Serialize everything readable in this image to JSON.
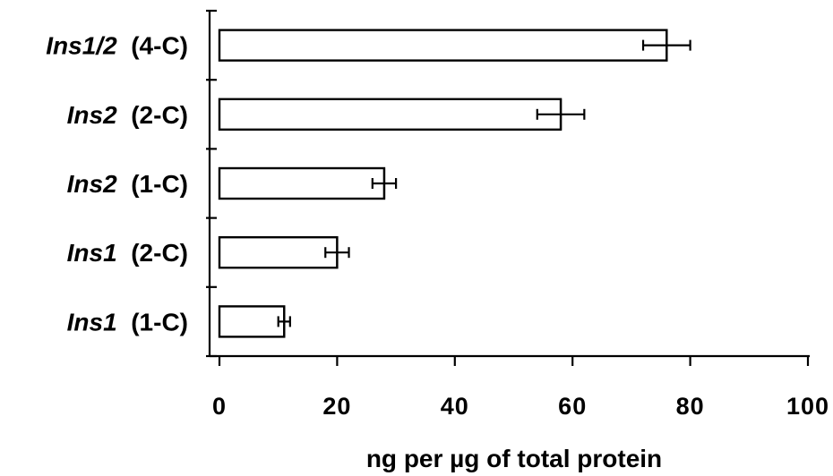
{
  "chart_data": {
    "type": "bar",
    "orientation": "horizontal",
    "categories": [
      {
        "gene": "Ins1/2",
        "condition": "(4-C)"
      },
      {
        "gene": "Ins2",
        "condition": "(2-C)"
      },
      {
        "gene": "Ins2",
        "condition": "(1-C)"
      },
      {
        "gene": "Ins1",
        "condition": "(2-C)"
      },
      {
        "gene": "Ins1",
        "condition": "(1-C)"
      }
    ],
    "values": [
      76,
      58,
      28,
      20,
      11
    ],
    "errors": [
      4,
      4,
      2,
      2,
      1
    ],
    "xlabel": "ng per µg of total protein",
    "xlim": [
      0,
      100
    ],
    "xticks": [
      0,
      20,
      40,
      60,
      80,
      100
    ],
    "grid": false,
    "colors": {
      "bar_fill": "#ffffff",
      "bar_stroke": "#000000"
    }
  }
}
